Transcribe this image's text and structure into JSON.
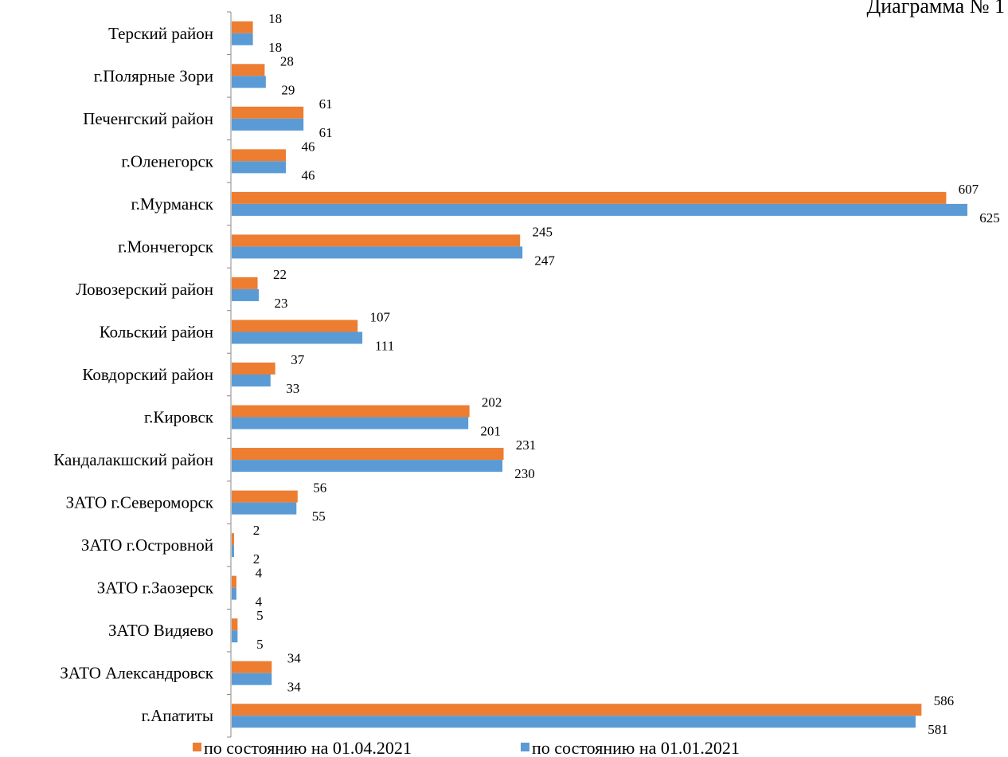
{
  "chart_data": {
    "type": "bar",
    "orientation": "horizontal",
    "title": "Диаграмма № 1",
    "categories": [
      "Терский район",
      "г.Полярные Зори",
      "Печенгский район",
      "г.Оленегорск",
      "г.Мурманск",
      "г.Мончегорск",
      "Ловозерский район",
      "Кольский район",
      "Ковдорский район",
      "г.Кировск",
      "Кандалакшский район",
      "ЗАТО г.Североморск",
      "ЗАТО г.Островной",
      "ЗАТО г.Заозерск",
      "ЗАТО Видяево",
      "ЗАТО Александровск",
      "г.Апатиты"
    ],
    "series": [
      {
        "name": "по состоянию на 01.04.2021",
        "color": "#ED7D31",
        "values": [
          18,
          28,
          61,
          46,
          607,
          245,
          22,
          107,
          37,
          202,
          231,
          56,
          2,
          4,
          5,
          34,
          586
        ]
      },
      {
        "name": "по состоянию на 01.01.2021",
        "color": "#5B9BD5",
        "values": [
          18,
          29,
          61,
          46,
          625,
          247,
          23,
          111,
          33,
          201,
          230,
          55,
          2,
          4,
          5,
          34,
          581
        ]
      }
    ],
    "xlim": [
      0,
      625
    ],
    "grid": false,
    "legend_position": "bottom",
    "axis_color": "#888888"
  }
}
